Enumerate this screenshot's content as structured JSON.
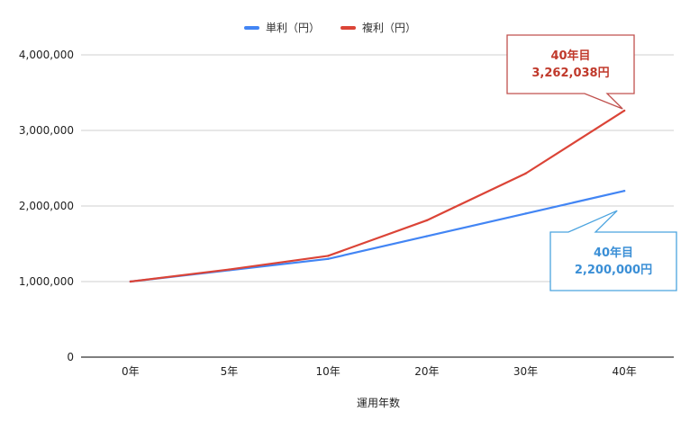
{
  "chart_data": {
    "type": "line",
    "categories": [
      "0年",
      "5年",
      "10年",
      "20年",
      "30年",
      "40年"
    ],
    "series": [
      {
        "name": "単利（円）",
        "color": "#4285f4",
        "values": [
          1000000,
          1150000,
          1300000,
          1600000,
          1900000,
          2200000
        ]
      },
      {
        "name": "複利（円）",
        "color": "#db4437",
        "values": [
          1000000,
          1160000,
          1340000,
          1810000,
          2430000,
          3262038
        ]
      }
    ],
    "xlabel": "運用年数",
    "ylabel": "",
    "ylim": [
      0,
      4000000
    ],
    "yticks": [
      "0",
      "1,000,000",
      "2,000,000",
      "3,000,000",
      "4,000,000"
    ],
    "grid": true,
    "legend_position": "top",
    "annotations": [
      {
        "series": "複利（円）",
        "line1": "40年目",
        "line2": "3,262,038円",
        "color": "#c0504d",
        "text_color": "#c0392b"
      },
      {
        "series": "単利（円）",
        "line1": "40年目",
        "line2": "2,200,000円",
        "color": "#4aa3df",
        "text_color": "#3b8fd6"
      }
    ]
  }
}
